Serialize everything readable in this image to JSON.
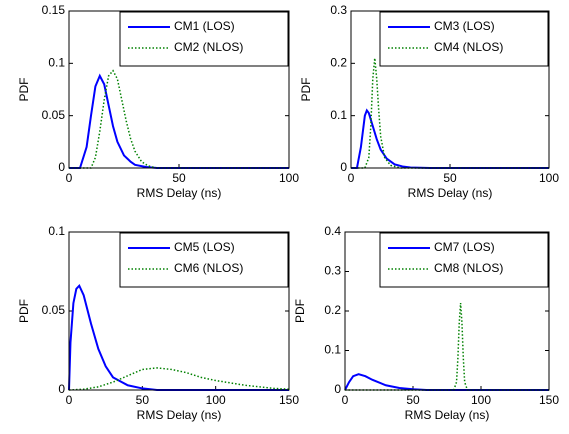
{
  "chart_data": [
    {
      "type": "line",
      "xlabel": "RMS Delay (ns)",
      "ylabel": "PDF",
      "xlim": [
        0,
        100
      ],
      "ylim": [
        0,
        0.15
      ],
      "xticks": [
        0,
        50,
        100
      ],
      "yticks": [
        0,
        0.05,
        0.1,
        0.15
      ],
      "legend": "upper right",
      "series": [
        {
          "name": "CM1 (LOS)",
          "color": "#0000ff",
          "line_style": "solid",
          "x": [
            0,
            5,
            8,
            10,
            12,
            14,
            16,
            18,
            20,
            22,
            25,
            28,
            30,
            35,
            40,
            50,
            100
          ],
          "values": [
            0,
            0,
            0.02,
            0.05,
            0.078,
            0.088,
            0.08,
            0.06,
            0.04,
            0.025,
            0.012,
            0.006,
            0.003,
            0.001,
            0,
            0,
            0
          ]
        },
        {
          "name": "CM2 (NLOS)",
          "color": "#008000",
          "line_style": "dotted",
          "x": [
            0,
            10,
            12,
            14,
            16,
            18,
            20,
            22,
            24,
            26,
            28,
            30,
            33,
            36,
            40,
            100
          ],
          "values": [
            0,
            0,
            0.01,
            0.035,
            0.065,
            0.088,
            0.093,
            0.085,
            0.065,
            0.045,
            0.028,
            0.016,
            0.006,
            0.002,
            0,
            0
          ]
        }
      ]
    },
    {
      "type": "line",
      "xlabel": "RMS Delay (ns)",
      "ylabel": "PDF",
      "xlim": [
        0,
        100
      ],
      "ylim": [
        0,
        0.3
      ],
      "xticks": [
        0,
        50,
        100
      ],
      "yticks": [
        0,
        0.1,
        0.2,
        0.3
      ],
      "legend": "upper right",
      "series": [
        {
          "name": "CM3 (LOS)",
          "color": "#0000ff",
          "line_style": "solid",
          "x": [
            0,
            3,
            5,
            7,
            8,
            9,
            11,
            13,
            15,
            18,
            22,
            26,
            30,
            40,
            100
          ],
          "values": [
            0,
            0,
            0.04,
            0.1,
            0.11,
            0.105,
            0.08,
            0.055,
            0.035,
            0.018,
            0.007,
            0.003,
            0.001,
            0,
            0
          ]
        },
        {
          "name": "CM4 (NLOS)",
          "color": "#008000",
          "line_style": "dotted",
          "x": [
            0,
            7,
            9,
            10,
            11,
            12,
            13,
            14,
            15,
            17,
            20,
            25,
            100
          ],
          "values": [
            0,
            0,
            0.02,
            0.08,
            0.17,
            0.21,
            0.17,
            0.11,
            0.06,
            0.02,
            0.005,
            0,
            0
          ]
        }
      ]
    },
    {
      "type": "line",
      "xlabel": "RMS Delay (ns)",
      "ylabel": "PDF",
      "xlim": [
        0,
        150
      ],
      "ylim": [
        0,
        0.1
      ],
      "xticks": [
        0,
        50,
        100,
        150
      ],
      "yticks": [
        0,
        0.05,
        0.1
      ],
      "legend": "upper right",
      "series": [
        {
          "name": "CM5 (LOS)",
          "color": "#0000ff",
          "line_style": "solid",
          "x": [
            0,
            1,
            3,
            5,
            7,
            10,
            15,
            20,
            25,
            30,
            40,
            50,
            60,
            80,
            100,
            150
          ],
          "values": [
            0,
            0.03,
            0.055,
            0.064,
            0.066,
            0.06,
            0.042,
            0.026,
            0.015,
            0.008,
            0.003,
            0.001,
            0,
            0,
            0,
            0
          ]
        },
        {
          "name": "CM6 (NLOS)",
          "color": "#008000",
          "line_style": "dotted",
          "x": [
            0,
            10,
            20,
            30,
            40,
            50,
            60,
            70,
            80,
            90,
            100,
            120,
            140,
            150
          ],
          "values": [
            0,
            0.0005,
            0.002,
            0.005,
            0.009,
            0.013,
            0.014,
            0.013,
            0.011,
            0.008,
            0.006,
            0.003,
            0.001,
            0.0005
          ]
        }
      ]
    },
    {
      "type": "line",
      "xlabel": "RMS Delay (ns)",
      "ylabel": "PDF",
      "xlim": [
        0,
        150
      ],
      "ylim": [
        0,
        0.4
      ],
      "xticks": [
        0,
        50,
        100,
        150
      ],
      "yticks": [
        0,
        0.1,
        0.2,
        0.3,
        0.4
      ],
      "legend": "upper right",
      "series": [
        {
          "name": "CM7 (LOS)",
          "color": "#0000ff",
          "line_style": "solid",
          "x": [
            0,
            3,
            6,
            10,
            15,
            20,
            30,
            40,
            50,
            60,
            150
          ],
          "values": [
            0,
            0.02,
            0.035,
            0.04,
            0.035,
            0.026,
            0.012,
            0.005,
            0.002,
            0,
            0
          ]
        },
        {
          "name": "CM8 (NLOS)",
          "color": "#008000",
          "line_style": "dotted",
          "x": [
            0,
            80,
            82,
            83,
            84,
            85,
            86,
            87,
            88,
            90,
            150
          ],
          "values": [
            0,
            0,
            0.02,
            0.08,
            0.17,
            0.22,
            0.17,
            0.08,
            0.02,
            0,
            0
          ]
        }
      ]
    }
  ]
}
